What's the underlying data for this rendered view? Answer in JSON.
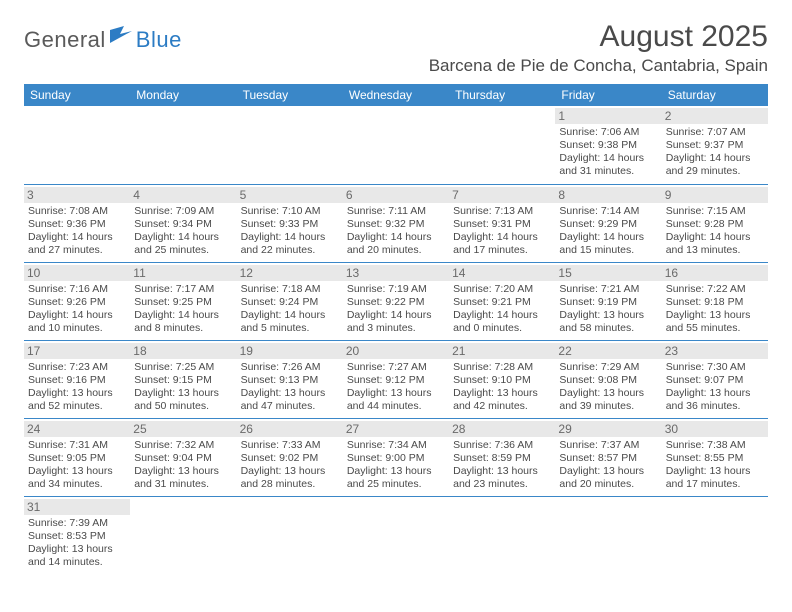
{
  "logo": {
    "part1": "General",
    "part2": "Blue"
  },
  "title": "August 2025",
  "location": "Barcena de Pie de Concha, Cantabria, Spain",
  "headers": [
    "Sunday",
    "Monday",
    "Tuesday",
    "Wednesday",
    "Thursday",
    "Friday",
    "Saturday"
  ],
  "colors": {
    "header_bg": "#3a87c8",
    "header_fg": "#ffffff",
    "daynum_bg": "#e8e8e8",
    "border": "#3a87c8",
    "text": "#4a4a4a",
    "logo_blue": "#2c7cc4"
  },
  "weeks": [
    [
      {
        "day": "",
        "sunrise": "",
        "sunset": "",
        "daylight1": "",
        "daylight2": ""
      },
      {
        "day": "",
        "sunrise": "",
        "sunset": "",
        "daylight1": "",
        "daylight2": ""
      },
      {
        "day": "",
        "sunrise": "",
        "sunset": "",
        "daylight1": "",
        "daylight2": ""
      },
      {
        "day": "",
        "sunrise": "",
        "sunset": "",
        "daylight1": "",
        "daylight2": ""
      },
      {
        "day": "",
        "sunrise": "",
        "sunset": "",
        "daylight1": "",
        "daylight2": ""
      },
      {
        "day": "1",
        "sunrise": "Sunrise: 7:06 AM",
        "sunset": "Sunset: 9:38 PM",
        "daylight1": "Daylight: 14 hours",
        "daylight2": "and 31 minutes."
      },
      {
        "day": "2",
        "sunrise": "Sunrise: 7:07 AM",
        "sunset": "Sunset: 9:37 PM",
        "daylight1": "Daylight: 14 hours",
        "daylight2": "and 29 minutes."
      }
    ],
    [
      {
        "day": "3",
        "sunrise": "Sunrise: 7:08 AM",
        "sunset": "Sunset: 9:36 PM",
        "daylight1": "Daylight: 14 hours",
        "daylight2": "and 27 minutes."
      },
      {
        "day": "4",
        "sunrise": "Sunrise: 7:09 AM",
        "sunset": "Sunset: 9:34 PM",
        "daylight1": "Daylight: 14 hours",
        "daylight2": "and 25 minutes."
      },
      {
        "day": "5",
        "sunrise": "Sunrise: 7:10 AM",
        "sunset": "Sunset: 9:33 PM",
        "daylight1": "Daylight: 14 hours",
        "daylight2": "and 22 minutes."
      },
      {
        "day": "6",
        "sunrise": "Sunrise: 7:11 AM",
        "sunset": "Sunset: 9:32 PM",
        "daylight1": "Daylight: 14 hours",
        "daylight2": "and 20 minutes."
      },
      {
        "day": "7",
        "sunrise": "Sunrise: 7:13 AM",
        "sunset": "Sunset: 9:31 PM",
        "daylight1": "Daylight: 14 hours",
        "daylight2": "and 17 minutes."
      },
      {
        "day": "8",
        "sunrise": "Sunrise: 7:14 AM",
        "sunset": "Sunset: 9:29 PM",
        "daylight1": "Daylight: 14 hours",
        "daylight2": "and 15 minutes."
      },
      {
        "day": "9",
        "sunrise": "Sunrise: 7:15 AM",
        "sunset": "Sunset: 9:28 PM",
        "daylight1": "Daylight: 14 hours",
        "daylight2": "and 13 minutes."
      }
    ],
    [
      {
        "day": "10",
        "sunrise": "Sunrise: 7:16 AM",
        "sunset": "Sunset: 9:26 PM",
        "daylight1": "Daylight: 14 hours",
        "daylight2": "and 10 minutes."
      },
      {
        "day": "11",
        "sunrise": "Sunrise: 7:17 AM",
        "sunset": "Sunset: 9:25 PM",
        "daylight1": "Daylight: 14 hours",
        "daylight2": "and 8 minutes."
      },
      {
        "day": "12",
        "sunrise": "Sunrise: 7:18 AM",
        "sunset": "Sunset: 9:24 PM",
        "daylight1": "Daylight: 14 hours",
        "daylight2": "and 5 minutes."
      },
      {
        "day": "13",
        "sunrise": "Sunrise: 7:19 AM",
        "sunset": "Sunset: 9:22 PM",
        "daylight1": "Daylight: 14 hours",
        "daylight2": "and 3 minutes."
      },
      {
        "day": "14",
        "sunrise": "Sunrise: 7:20 AM",
        "sunset": "Sunset: 9:21 PM",
        "daylight1": "Daylight: 14 hours",
        "daylight2": "and 0 minutes."
      },
      {
        "day": "15",
        "sunrise": "Sunrise: 7:21 AM",
        "sunset": "Sunset: 9:19 PM",
        "daylight1": "Daylight: 13 hours",
        "daylight2": "and 58 minutes."
      },
      {
        "day": "16",
        "sunrise": "Sunrise: 7:22 AM",
        "sunset": "Sunset: 9:18 PM",
        "daylight1": "Daylight: 13 hours",
        "daylight2": "and 55 minutes."
      }
    ],
    [
      {
        "day": "17",
        "sunrise": "Sunrise: 7:23 AM",
        "sunset": "Sunset: 9:16 PM",
        "daylight1": "Daylight: 13 hours",
        "daylight2": "and 52 minutes."
      },
      {
        "day": "18",
        "sunrise": "Sunrise: 7:25 AM",
        "sunset": "Sunset: 9:15 PM",
        "daylight1": "Daylight: 13 hours",
        "daylight2": "and 50 minutes."
      },
      {
        "day": "19",
        "sunrise": "Sunrise: 7:26 AM",
        "sunset": "Sunset: 9:13 PM",
        "daylight1": "Daylight: 13 hours",
        "daylight2": "and 47 minutes."
      },
      {
        "day": "20",
        "sunrise": "Sunrise: 7:27 AM",
        "sunset": "Sunset: 9:12 PM",
        "daylight1": "Daylight: 13 hours",
        "daylight2": "and 44 minutes."
      },
      {
        "day": "21",
        "sunrise": "Sunrise: 7:28 AM",
        "sunset": "Sunset: 9:10 PM",
        "daylight1": "Daylight: 13 hours",
        "daylight2": "and 42 minutes."
      },
      {
        "day": "22",
        "sunrise": "Sunrise: 7:29 AM",
        "sunset": "Sunset: 9:08 PM",
        "daylight1": "Daylight: 13 hours",
        "daylight2": "and 39 minutes."
      },
      {
        "day": "23",
        "sunrise": "Sunrise: 7:30 AM",
        "sunset": "Sunset: 9:07 PM",
        "daylight1": "Daylight: 13 hours",
        "daylight2": "and 36 minutes."
      }
    ],
    [
      {
        "day": "24",
        "sunrise": "Sunrise: 7:31 AM",
        "sunset": "Sunset: 9:05 PM",
        "daylight1": "Daylight: 13 hours",
        "daylight2": "and 34 minutes."
      },
      {
        "day": "25",
        "sunrise": "Sunrise: 7:32 AM",
        "sunset": "Sunset: 9:04 PM",
        "daylight1": "Daylight: 13 hours",
        "daylight2": "and 31 minutes."
      },
      {
        "day": "26",
        "sunrise": "Sunrise: 7:33 AM",
        "sunset": "Sunset: 9:02 PM",
        "daylight1": "Daylight: 13 hours",
        "daylight2": "and 28 minutes."
      },
      {
        "day": "27",
        "sunrise": "Sunrise: 7:34 AM",
        "sunset": "Sunset: 9:00 PM",
        "daylight1": "Daylight: 13 hours",
        "daylight2": "and 25 minutes."
      },
      {
        "day": "28",
        "sunrise": "Sunrise: 7:36 AM",
        "sunset": "Sunset: 8:59 PM",
        "daylight1": "Daylight: 13 hours",
        "daylight2": "and 23 minutes."
      },
      {
        "day": "29",
        "sunrise": "Sunrise: 7:37 AM",
        "sunset": "Sunset: 8:57 PM",
        "daylight1": "Daylight: 13 hours",
        "daylight2": "and 20 minutes."
      },
      {
        "day": "30",
        "sunrise": "Sunrise: 7:38 AM",
        "sunset": "Sunset: 8:55 PM",
        "daylight1": "Daylight: 13 hours",
        "daylight2": "and 17 minutes."
      }
    ],
    [
      {
        "day": "31",
        "sunrise": "Sunrise: 7:39 AM",
        "sunset": "Sunset: 8:53 PM",
        "daylight1": "Daylight: 13 hours",
        "daylight2": "and 14 minutes."
      },
      {
        "day": "",
        "sunrise": "",
        "sunset": "",
        "daylight1": "",
        "daylight2": ""
      },
      {
        "day": "",
        "sunrise": "",
        "sunset": "",
        "daylight1": "",
        "daylight2": ""
      },
      {
        "day": "",
        "sunrise": "",
        "sunset": "",
        "daylight1": "",
        "daylight2": ""
      },
      {
        "day": "",
        "sunrise": "",
        "sunset": "",
        "daylight1": "",
        "daylight2": ""
      },
      {
        "day": "",
        "sunrise": "",
        "sunset": "",
        "daylight1": "",
        "daylight2": ""
      },
      {
        "day": "",
        "sunrise": "",
        "sunset": "",
        "daylight1": "",
        "daylight2": ""
      }
    ]
  ]
}
